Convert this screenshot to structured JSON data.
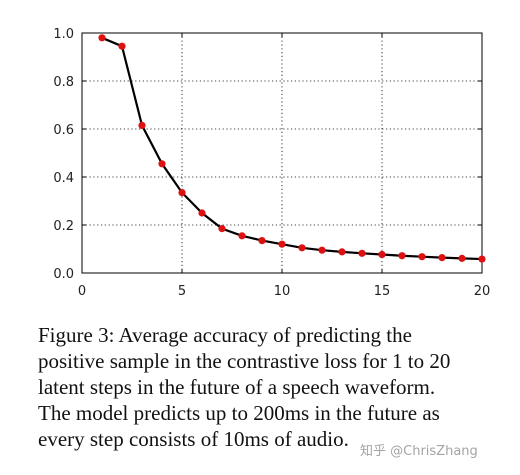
{
  "chart_data": {
    "type": "line",
    "x": [
      1,
      2,
      3,
      4,
      5,
      6,
      7,
      8,
      9,
      10,
      11,
      12,
      13,
      14,
      15,
      16,
      17,
      18,
      19,
      20
    ],
    "series": [
      {
        "values": [
          0.98,
          0.945,
          0.615,
          0.455,
          0.335,
          0.25,
          0.185,
          0.155,
          0.135,
          0.12,
          0.105,
          0.095,
          0.088,
          0.082,
          0.077,
          0.072,
          0.068,
          0.064,
          0.061,
          0.058
        ],
        "line_color": "#000000",
        "marker_color": "#dd1111"
      }
    ],
    "xlim": [
      0,
      20
    ],
    "ylim": [
      0,
      1.0
    ],
    "xticks": [
      0,
      5,
      10,
      15,
      20
    ],
    "yticks": [
      0.0,
      0.2,
      0.4,
      0.6,
      0.8,
      1.0
    ],
    "xtick_labels": [
      "0",
      "5",
      "10",
      "15",
      "20"
    ],
    "ytick_labels": [
      "0.0",
      "0.2",
      "0.4",
      "0.6",
      "0.8",
      "1.0"
    ],
    "grid": true,
    "grid_style": "dotted"
  },
  "caption": {
    "lines": [
      "Figure 3:  Average accuracy of predicting the",
      "positive sample in the contrastive loss for 1 to 20",
      "latent steps in the future of a speech waveform.",
      "The model predicts up to 200ms in the future as",
      "every step consists of 10ms of audio."
    ]
  },
  "watermark": "知乎 @ChrisZhang"
}
